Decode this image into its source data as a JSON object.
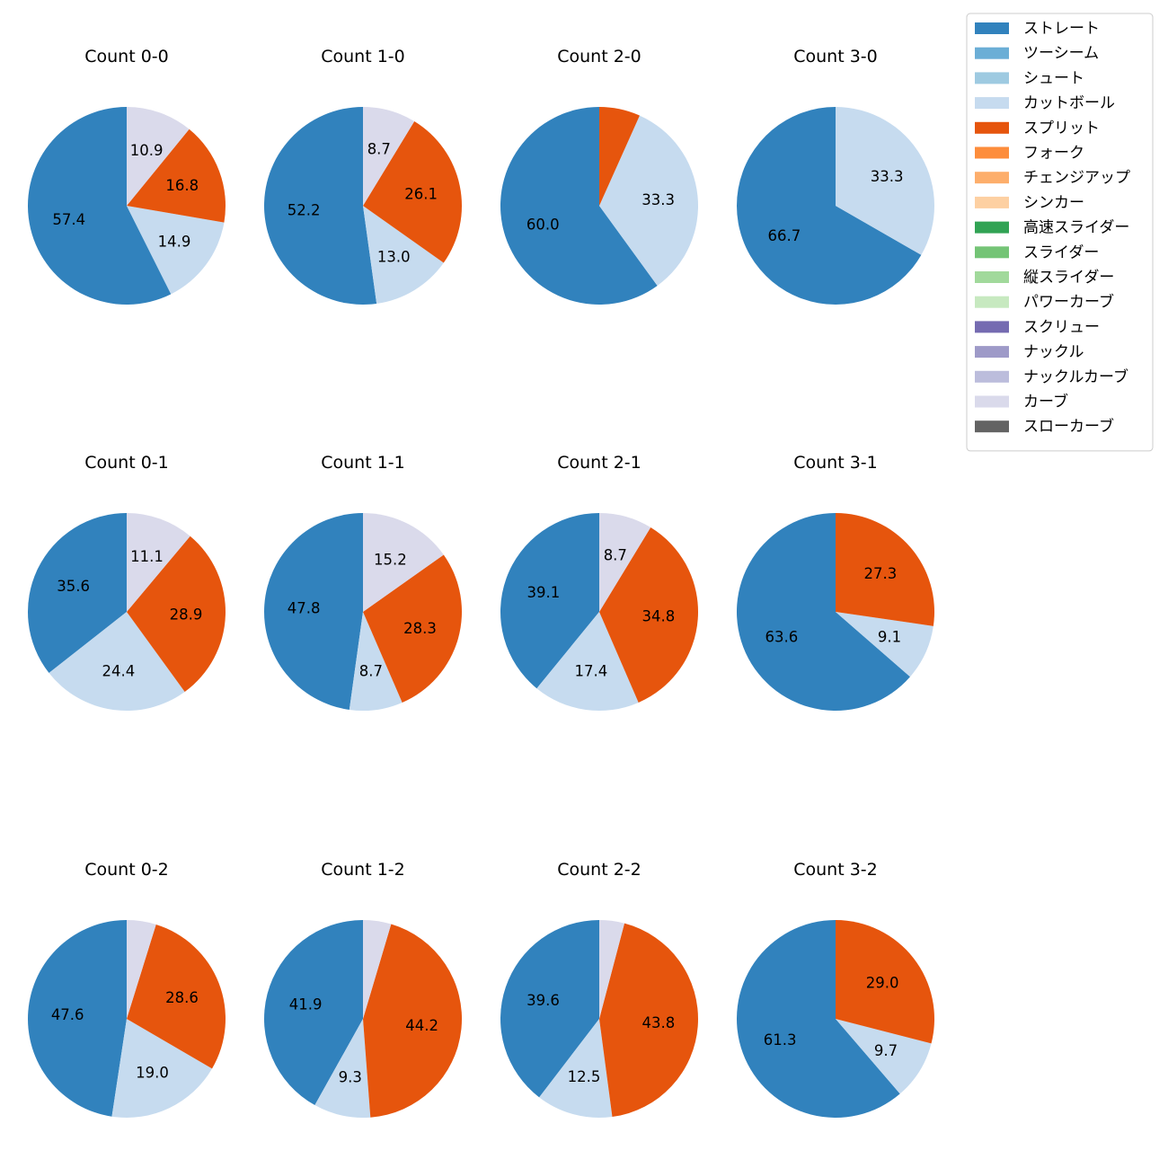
{
  "chart_data": {
    "type": "pie",
    "category_colors": {
      "ストレート": "#3182bd",
      "ツーシーム": "#6baed6",
      "シュート": "#9ecae1",
      "カットボール": "#c6dbef",
      "スプリット": "#e6550d",
      "フォーク": "#fd8d3c",
      "チェンジアップ": "#fdae6b",
      "シンカー": "#fdd0a2",
      "高速スライダー": "#31a354",
      "スライダー": "#74c476",
      "縦スライダー": "#a1d99b",
      "パワーカーブ": "#c7e9c0",
      "スクリュー": "#756bb1",
      "ナックル": "#9e9ac8",
      "ナックルカーブ": "#bcbddc",
      "カーブ": "#dadaeb",
      "スローカーブ": "#636363"
    },
    "legend": [
      "ストレート",
      "ツーシーム",
      "シュート",
      "カットボール",
      "スプリット",
      "フォーク",
      "チェンジアップ",
      "シンカー",
      "高速スライダー",
      "スライダー",
      "縦スライダー",
      "パワーカーブ",
      "スクリュー",
      "ナックル",
      "ナックルカーブ",
      "カーブ",
      "スローカーブ"
    ],
    "legend_position": "top-right",
    "charts": [
      {
        "title": "Count 0-0",
        "slices": [
          {
            "category": "ストレート",
            "value": 57.4,
            "label": "57.4"
          },
          {
            "category": "カットボール",
            "value": 14.9,
            "label": "14.9"
          },
          {
            "category": "スプリット",
            "value": 16.8,
            "label": "16.8"
          },
          {
            "category": "カーブ",
            "value": 10.9,
            "label": "10.9"
          }
        ]
      },
      {
        "title": "Count 1-0",
        "slices": [
          {
            "category": "ストレート",
            "value": 52.2,
            "label": "52.2"
          },
          {
            "category": "カットボール",
            "value": 13.0,
            "label": "13.0"
          },
          {
            "category": "スプリット",
            "value": 26.1,
            "label": "26.1"
          },
          {
            "category": "カーブ",
            "value": 8.7,
            "label": "8.7"
          }
        ]
      },
      {
        "title": "Count 2-0",
        "slices": [
          {
            "category": "ストレート",
            "value": 60.0,
            "label": "60.0"
          },
          {
            "category": "カットボール",
            "value": 33.3,
            "label": "33.3"
          },
          {
            "category": "スプリット",
            "value": 6.7,
            "label": ""
          }
        ]
      },
      {
        "title": "Count 3-0",
        "slices": [
          {
            "category": "ストレート",
            "value": 66.7,
            "label": "66.7"
          },
          {
            "category": "カットボール",
            "value": 33.3,
            "label": "33.3"
          }
        ]
      },
      {
        "title": "Count 0-1",
        "slices": [
          {
            "category": "ストレート",
            "value": 35.6,
            "label": "35.6"
          },
          {
            "category": "カットボール",
            "value": 24.4,
            "label": "24.4"
          },
          {
            "category": "スプリット",
            "value": 28.9,
            "label": "28.9"
          },
          {
            "category": "カーブ",
            "value": 11.1,
            "label": "11.1"
          }
        ]
      },
      {
        "title": "Count 1-1",
        "slices": [
          {
            "category": "ストレート",
            "value": 47.8,
            "label": "47.8"
          },
          {
            "category": "カットボール",
            "value": 8.7,
            "label": "8.7"
          },
          {
            "category": "スプリット",
            "value": 28.3,
            "label": "28.3"
          },
          {
            "category": "カーブ",
            "value": 15.2,
            "label": "15.2"
          }
        ]
      },
      {
        "title": "Count 2-1",
        "slices": [
          {
            "category": "ストレート",
            "value": 39.1,
            "label": "39.1"
          },
          {
            "category": "カットボール",
            "value": 17.4,
            "label": "17.4"
          },
          {
            "category": "スプリット",
            "value": 34.8,
            "label": "34.8"
          },
          {
            "category": "カーブ",
            "value": 8.7,
            "label": "8.7"
          }
        ]
      },
      {
        "title": "Count 3-1",
        "slices": [
          {
            "category": "ストレート",
            "value": 63.6,
            "label": "63.6"
          },
          {
            "category": "カットボール",
            "value": 9.1,
            "label": "9.1"
          },
          {
            "category": "スプリット",
            "value": 27.3,
            "label": "27.3"
          }
        ]
      },
      {
        "title": "Count 0-2",
        "slices": [
          {
            "category": "ストレート",
            "value": 47.6,
            "label": "47.6"
          },
          {
            "category": "カットボール",
            "value": 19.0,
            "label": "19.0"
          },
          {
            "category": "スプリット",
            "value": 28.6,
            "label": "28.6"
          },
          {
            "category": "カーブ",
            "value": 4.8,
            "label": ""
          }
        ]
      },
      {
        "title": "Count 1-2",
        "slices": [
          {
            "category": "ストレート",
            "value": 41.9,
            "label": "41.9"
          },
          {
            "category": "カットボール",
            "value": 9.3,
            "label": "9.3"
          },
          {
            "category": "スプリット",
            "value": 44.2,
            "label": "44.2"
          },
          {
            "category": "カーブ",
            "value": 4.6,
            "label": ""
          }
        ]
      },
      {
        "title": "Count 2-2",
        "slices": [
          {
            "category": "ストレート",
            "value": 39.6,
            "label": "39.6"
          },
          {
            "category": "カットボール",
            "value": 12.5,
            "label": "12.5"
          },
          {
            "category": "スプリット",
            "value": 43.8,
            "label": "43.8"
          },
          {
            "category": "カーブ",
            "value": 4.1,
            "label": ""
          }
        ]
      },
      {
        "title": "Count 3-2",
        "slices": [
          {
            "category": "ストレート",
            "value": 61.3,
            "label": "61.3"
          },
          {
            "category": "カットボール",
            "value": 9.7,
            "label": "9.7"
          },
          {
            "category": "スプリット",
            "value": 29.0,
            "label": "29.0"
          }
        ]
      }
    ]
  }
}
